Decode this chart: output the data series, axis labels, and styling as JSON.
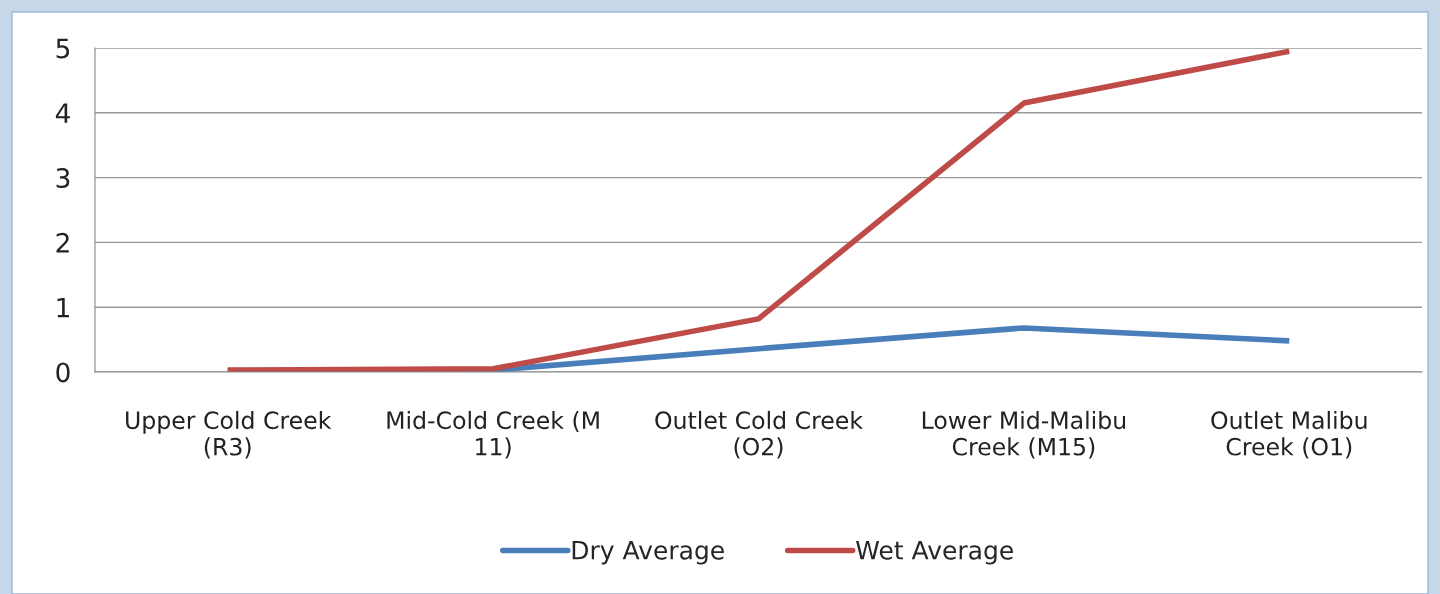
{
  "chart_data": {
    "type": "line",
    "categories": [
      "Upper Cold Creek\n(R3)",
      "Mid-Cold Creek (M\n11)",
      "Outlet Cold Creek\n(O2)",
      "Lower Mid-Malibu\nCreek (M15)",
      "Outlet Malibu\nCreek (O1)"
    ],
    "series": [
      {
        "name": "Dry Average",
        "color": "#4a7ebb",
        "values": [
          0.02,
          0.03,
          0.36,
          0.68,
          0.48
        ]
      },
      {
        "name": "Wet Average",
        "color": "#be4b48",
        "values": [
          0.03,
          0.05,
          0.82,
          4.15,
          4.95
        ]
      }
    ],
    "ylim": [
      0,
      5
    ],
    "yticks": [
      0,
      1,
      2,
      3,
      4,
      5
    ],
    "grid": "y",
    "legend": "bottom",
    "marker": "none",
    "line_style": "solid"
  }
}
